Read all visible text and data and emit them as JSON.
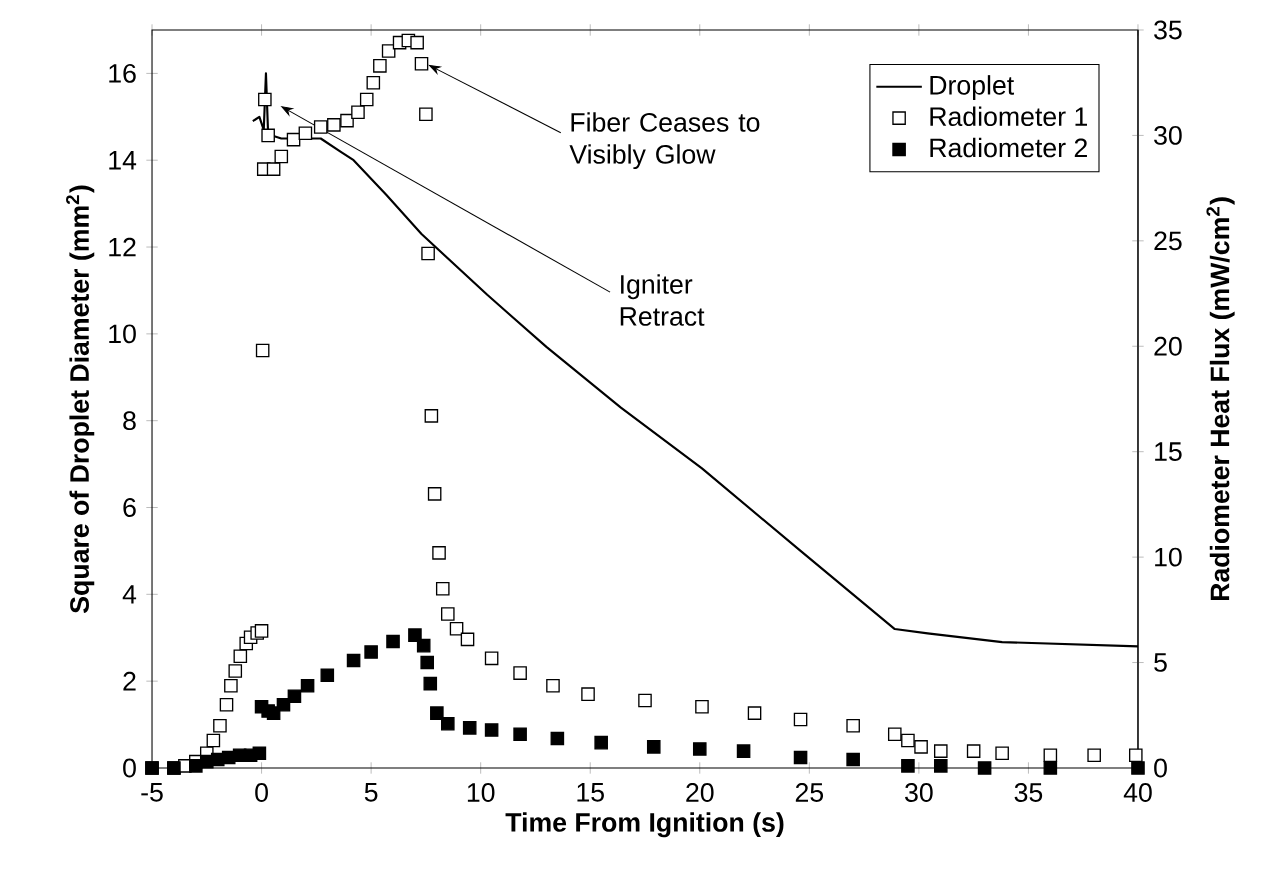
{
  "chart_data": {
    "type": "line",
    "xlabel": "Time From Ignition (s)",
    "ylabel": "Square of Droplet Diameter (mm$^{2}$)",
    "y2label": "Radiometer Heat Flux (mW/cm$^{2}$)",
    "xlim": [
      -5,
      40
    ],
    "xticks": [
      -5,
      0,
      5,
      10,
      15,
      20,
      25,
      30,
      35,
      40
    ],
    "ylim": [
      0,
      17
    ],
    "yticks": [
      0,
      2,
      4,
      6,
      8,
      10,
      12,
      14,
      16
    ],
    "y2lim": [
      0,
      35
    ],
    "y2ticks": [
      0,
      5,
      10,
      15,
      20,
      25,
      30,
      35
    ],
    "legend": "top right",
    "series": [
      {
        "name": "Droplet",
        "marker": "none",
        "color": "#000000",
        "x": [
          -0.4,
          -0.1,
          0.1,
          0.2,
          0.3,
          0.9,
          2.7,
          3.6,
          4.2,
          5.7,
          7.3,
          10.3,
          13.0,
          16.4,
          20.1,
          24.6,
          28.9,
          30.4,
          33.8,
          40
        ],
        "values": [
          14.9,
          15.0,
          14.7,
          16.0,
          14.6,
          14.5,
          14.5,
          14.2,
          14.0,
          13.2,
          12.3,
          10.9,
          9.7,
          8.3,
          6.9,
          5.0,
          3.2,
          3.1,
          2.9,
          2.8
        ]
      },
      {
        "name": "Radiometer 1",
        "type": "scatter",
        "axis": "y2",
        "marker": "square",
        "color": "#ffffff",
        "x": [
          -5,
          -4,
          -3.5,
          -3,
          -2.5,
          -2.2,
          -1.9,
          -1.6,
          -1.4,
          -1.2,
          -0.97,
          -0.7,
          -0.5,
          -0.2,
          0,
          0.05,
          0.1,
          0.15,
          0.3,
          0.55,
          0.9,
          1.46,
          2.0,
          2.7,
          3.3,
          3.9,
          4.4,
          4.8,
          5.1,
          5.4,
          5.8,
          6.3,
          6.7,
          7.1,
          7.3,
          7.5,
          7.6,
          7.75,
          7.9,
          8.1,
          8.27,
          8.5,
          8.9,
          9.4,
          10.5,
          11.8,
          13.3,
          14.9,
          17.5,
          20.1,
          22.5,
          24.6,
          27,
          28.9,
          29.5,
          30.1,
          31,
          32.5,
          33.8,
          36,
          38,
          39.9
        ],
        "values": [
          0,
          0,
          0.1,
          0.3,
          0.7,
          1.3,
          2.0,
          3.0,
          3.9,
          4.6,
          5.3,
          5.9,
          6.2,
          6.4,
          6.5,
          19.8,
          28.4,
          31.7,
          30.0,
          28.4,
          29.0,
          29.8,
          30.1,
          30.4,
          30.5,
          30.7,
          31.1,
          31.7,
          32.5,
          33.3,
          34.0,
          34.4,
          34.5,
          34.4,
          33.4,
          31.0,
          24.4,
          16.7,
          13.0,
          10.2,
          8.5,
          7.3,
          6.6,
          6.1,
          5.2,
          4.5,
          3.9,
          3.5,
          3.2,
          2.9,
          2.6,
          2.3,
          2.0,
          1.6,
          1.3,
          1.0,
          0.8,
          0.8,
          0.7,
          0.6,
          0.6,
          0.6
        ]
      },
      {
        "name": "Radiometer 2",
        "type": "scatter",
        "axis": "y2",
        "marker": "square",
        "color": "#000000",
        "x": [
          -5,
          -4,
          -3,
          -2.5,
          -2,
          -1.5,
          -1,
          -0.5,
          -0.1,
          0,
          0.3,
          0.55,
          1.0,
          1.5,
          2.1,
          3.0,
          4.2,
          5,
          6,
          7.0,
          7.4,
          7.56,
          7.7,
          8.0,
          8.5,
          9.5,
          10.5,
          11.8,
          13.5,
          15.5,
          17.9,
          20,
          22,
          24.6,
          27,
          29.5,
          31,
          33,
          36,
          40
        ],
        "values": [
          0,
          0,
          0.1,
          0.3,
          0.4,
          0.5,
          0.6,
          0.6,
          0.7,
          2.9,
          2.7,
          2.6,
          3.0,
          3.4,
          3.9,
          4.4,
          5.1,
          5.5,
          6.0,
          6.3,
          5.8,
          5.0,
          4.0,
          2.6,
          2.1,
          1.9,
          1.8,
          1.6,
          1.4,
          1.2,
          1.0,
          0.9,
          0.8,
          0.5,
          0.4,
          0.1,
          0.1,
          0,
          0,
          0
        ]
      }
    ],
    "annotations": [
      {
        "text": "Fiber Ceases to Visibly Glow",
        "x": 7.6,
        "y": 16.2
      },
      {
        "text": "Igniter Retract",
        "x": 0.86,
        "y": 15.25
      }
    ]
  }
}
